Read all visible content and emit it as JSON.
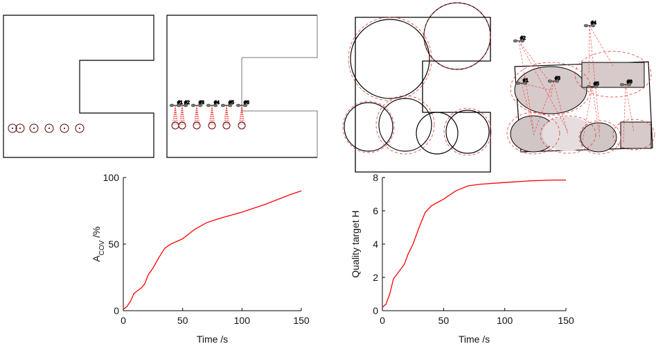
{
  "chart_data": [
    {
      "type": "line",
      "ylabel": [
        "A",
        "COV",
        " /%"
      ],
      "xlabel": "Time /s",
      "xlim": [
        0,
        150
      ],
      "xticks": [
        0,
        50,
        100,
        150
      ],
      "ylim": [
        0,
        100
      ],
      "yticks": [
        0,
        50,
        100
      ],
      "color": "#ff0000",
      "x": [
        0,
        3,
        6,
        9,
        12,
        15,
        18,
        21,
        25,
        30,
        35,
        40,
        50,
        60,
        70,
        80,
        100,
        120,
        140,
        150
      ],
      "values": [
        1,
        3,
        7,
        13,
        15,
        17,
        20,
        27,
        32,
        40,
        47,
        50,
        54,
        61,
        66,
        69,
        74,
        80,
        87,
        90
      ]
    },
    {
      "type": "line",
      "ylabel": [
        "Quality target H"
      ],
      "xlabel": "Time /s",
      "xlim": [
        0,
        150
      ],
      "xticks": [
        0,
        50,
        100,
        150
      ],
      "ylim": [
        0,
        8
      ],
      "yticks": [
        0,
        2,
        4,
        6,
        8
      ],
      "color": "#ff0000",
      "x": [
        0,
        3,
        6,
        9,
        12,
        15,
        18,
        21,
        25,
        30,
        35,
        40,
        50,
        60,
        70,
        80,
        100,
        120,
        140,
        150
      ],
      "values": [
        0.2,
        0.4,
        1.0,
        1.9,
        2.2,
        2.5,
        2.8,
        3.4,
        4.0,
        5.0,
        5.9,
        6.3,
        6.7,
        7.2,
        7.5,
        7.6,
        7.7,
        7.8,
        7.85,
        7.85
      ]
    }
  ],
  "swarm_labels": [
    "#1",
    "#2",
    "#3",
    "#4",
    "#5",
    "#6"
  ]
}
